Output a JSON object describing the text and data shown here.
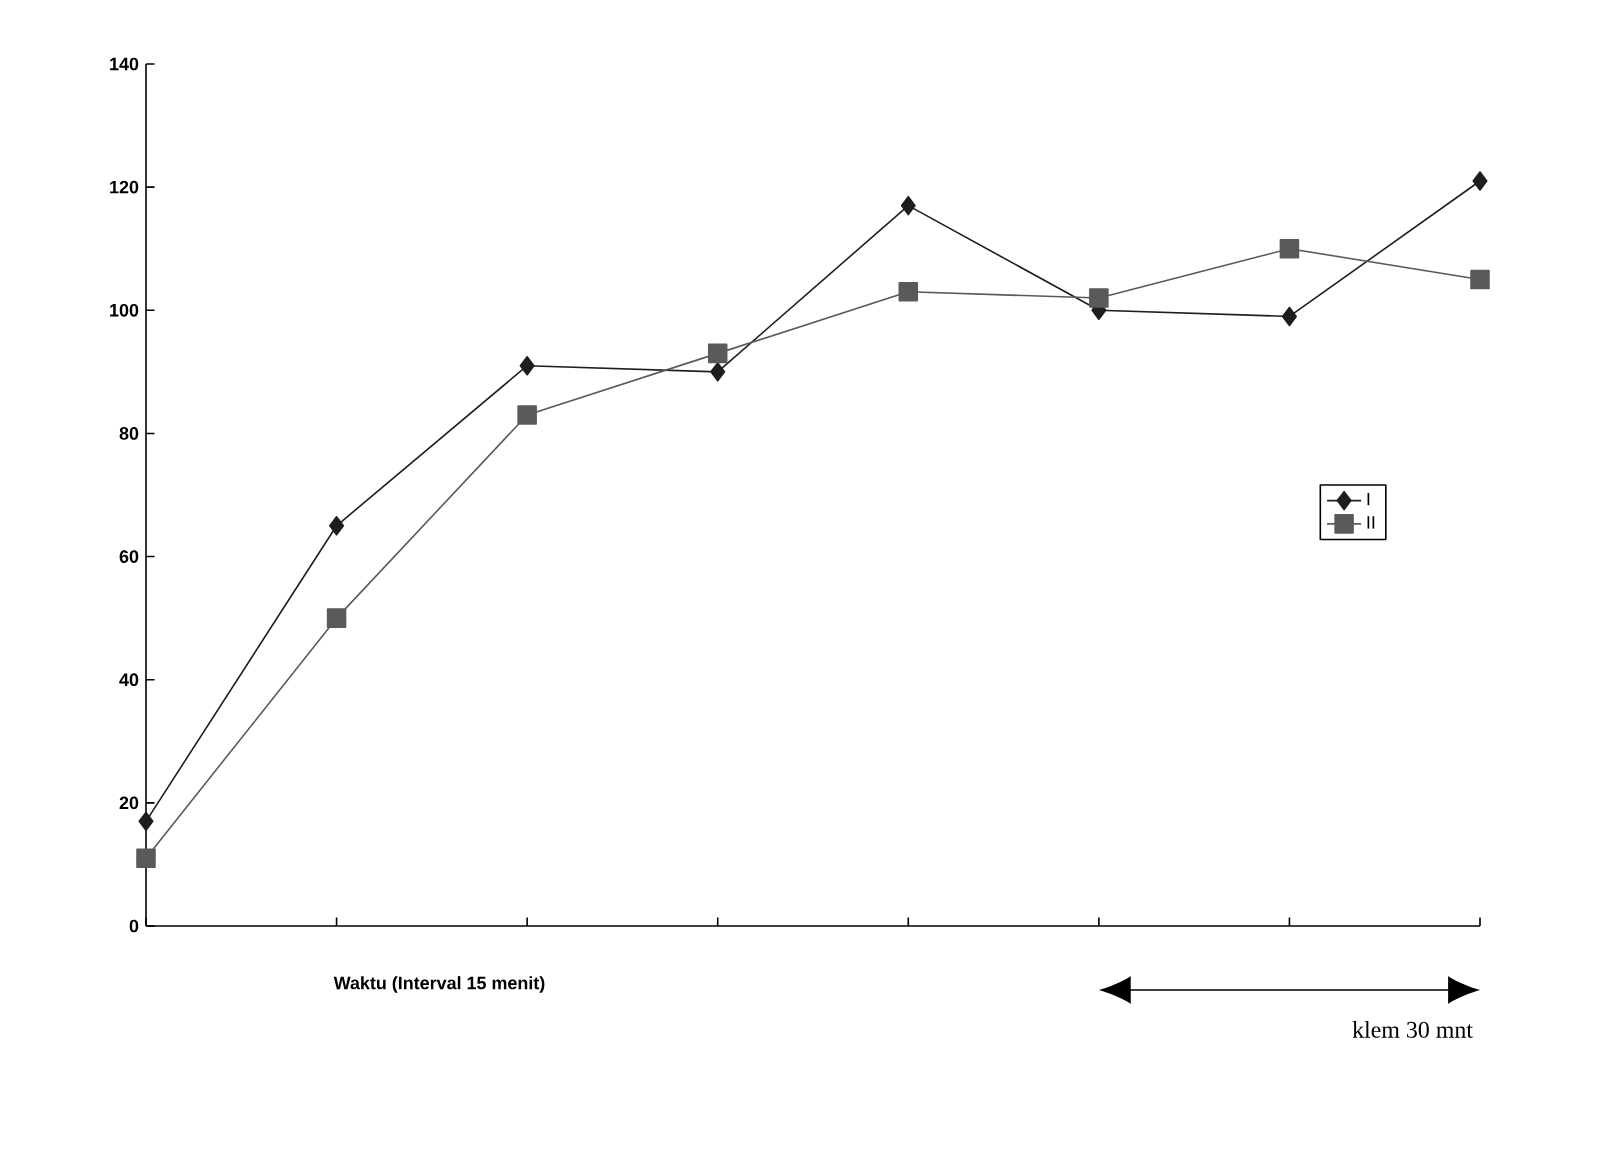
{
  "chart_data": {
    "type": "line",
    "xlabel": "Waktu (Interval 15 menit)",
    "annotations": [
      "klem 30 mnt"
    ],
    "categories": [
      null,
      null,
      null,
      null,
      null,
      null,
      null,
      null
    ],
    "series": [
      {
        "name": "I",
        "color": "#1e1e1e",
        "marker": "diamond",
        "values": [
          17,
          65,
          91,
          90,
          117,
          100,
          99,
          121
        ]
      },
      {
        "name": "II",
        "color": "#5a5a5a",
        "marker": "square",
        "values": [
          11,
          50,
          83,
          93,
          103,
          102,
          110,
          105
        ]
      }
    ],
    "ylim": [
      0,
      140
    ],
    "yticks": [
      0,
      20,
      40,
      60,
      80,
      100,
      120,
      140
    ],
    "tick_labels": "y",
    "legend": "right",
    "line_style": "solid"
  }
}
